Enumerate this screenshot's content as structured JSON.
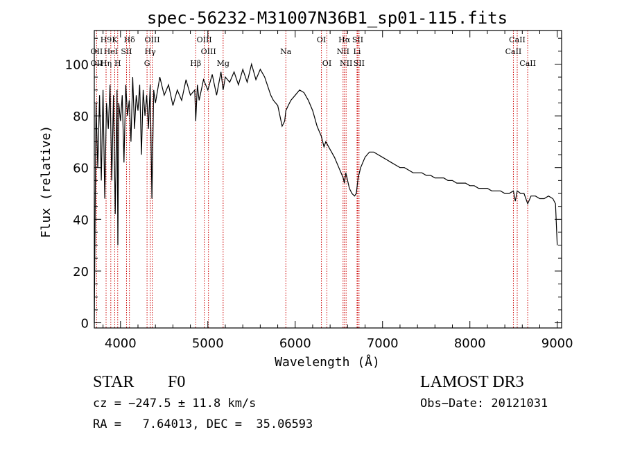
{
  "chart_data": {
    "type": "line",
    "title": "spec-56232-M31007N36B1_sp01-115.fits",
    "xlabel": "Wavelength (Å)",
    "ylabel": "Flux (relative)",
    "xlim": [
      3700,
      9050
    ],
    "ylim": [
      -2,
      113
    ],
    "xticks": [
      4000,
      5000,
      6000,
      7000,
      8000,
      9000
    ],
    "yticks": [
      0,
      20,
      40,
      60,
      80,
      100
    ],
    "grid": false,
    "line_color": "#000000",
    "marker_color": "#cc0000",
    "series": [
      {
        "name": "spectrum",
        "x": [
          3700,
          3720,
          3740,
          3760,
          3780,
          3800,
          3820,
          3840,
          3860,
          3880,
          3900,
          3920,
          3940,
          3960,
          3970,
          3980,
          4000,
          4020,
          4040,
          4060,
          4080,
          4100,
          4120,
          4140,
          4160,
          4180,
          4200,
          4220,
          4240,
          4260,
          4280,
          4300,
          4320,
          4340,
          4360,
          4380,
          4400,
          4450,
          4500,
          4550,
          4600,
          4650,
          4700,
          4750,
          4800,
          4850,
          4861,
          4880,
          4900,
          4950,
          5000,
          5050,
          5100,
          5150,
          5175,
          5200,
          5250,
          5300,
          5350,
          5400,
          5450,
          5500,
          5550,
          5600,
          5650,
          5700,
          5720,
          5750,
          5800,
          5850,
          5880,
          5893,
          5920,
          5950,
          6000,
          6050,
          6100,
          6150,
          6200,
          6250,
          6300,
          6330,
          6350,
          6400,
          6450,
          6500,
          6550,
          6563,
          6580,
          6620,
          6650,
          6680,
          6700,
          6720,
          6750,
          6800,
          6850,
          6900,
          6950,
          7000,
          7050,
          7100,
          7150,
          7200,
          7250,
          7300,
          7350,
          7400,
          7450,
          7500,
          7550,
          7600,
          7650,
          7700,
          7750,
          7800,
          7850,
          7900,
          7950,
          8000,
          8050,
          8100,
          8150,
          8200,
          8250,
          8300,
          8350,
          8400,
          8450,
          8498,
          8520,
          8542,
          8580,
          8620,
          8662,
          8700,
          8750,
          8800,
          8850,
          8900,
          8950,
          8980,
          9000
        ],
        "values": [
          0,
          85,
          60,
          88,
          55,
          90,
          48,
          85,
          75,
          92,
          55,
          88,
          42,
          90,
          30,
          85,
          78,
          88,
          62,
          92,
          80,
          86,
          70,
          95,
          75,
          88,
          82,
          92,
          65,
          90,
          80,
          88,
          75,
          92,
          48,
          90,
          85,
          95,
          88,
          92,
          84,
          90,
          86,
          94,
          88,
          90,
          78,
          92,
          86,
          94,
          90,
          96,
          88,
          97,
          90,
          95,
          93,
          97,
          92,
          98,
          93,
          100,
          94,
          98,
          95,
          90,
          88,
          86,
          84,
          76,
          78,
          82,
          84,
          86,
          88,
          90,
          89,
          86,
          82,
          76,
          72,
          68,
          70,
          67,
          64,
          60,
          56,
          54,
          58,
          52,
          50,
          49,
          50,
          56,
          60,
          64,
          66,
          66,
          65,
          64,
          63,
          62,
          61,
          60,
          60,
          59,
          58,
          58,
          58,
          57,
          57,
          56,
          56,
          56,
          55,
          55,
          54,
          54,
          54,
          53,
          53,
          52,
          52,
          52,
          51,
          51,
          51,
          50,
          50,
          51,
          47,
          51,
          50,
          50,
          46,
          49,
          49,
          48,
          48,
          49,
          48,
          46,
          30
        ]
      }
    ],
    "line_markers": [
      {
        "name": "H9",
        "x": 3835,
        "row": 1
      },
      {
        "name": "K",
        "x": 3934,
        "row": 1
      },
      {
        "name": "Hδ",
        "x": 4102,
        "row": 1
      },
      {
        "name": "OIII",
        "x": 4363,
        "row": 1
      },
      {
        "name": "OIII",
        "x": 4959,
        "row": 1
      },
      {
        "name": "OI",
        "x": 6300,
        "row": 1
      },
      {
        "name": "Hα",
        "x": 6563,
        "row": 1
      },
      {
        "name": "SII",
        "x": 6716,
        "row": 1
      },
      {
        "name": "CaII",
        "x": 8542,
        "row": 1
      },
      {
        "name": "OII",
        "x": 3727,
        "row": 2
      },
      {
        "name": "HeI",
        "x": 3889,
        "row": 2
      },
      {
        "name": "SII",
        "x": 4069,
        "row": 2
      },
      {
        "name": "Hγ",
        "x": 4340,
        "row": 2
      },
      {
        "name": "OIII",
        "x": 5007,
        "row": 2
      },
      {
        "name": "Na",
        "x": 5893,
        "row": 2
      },
      {
        "name": "NII",
        "x": 6548,
        "row": 2
      },
      {
        "name": "Li",
        "x": 6708,
        "row": 2
      },
      {
        "name": "CaII",
        "x": 8498,
        "row": 2
      },
      {
        "name": "OII",
        "x": 3727,
        "row": 3
      },
      {
        "name": "Hη",
        "x": 3835,
        "row": 3
      },
      {
        "name": "H",
        "x": 3968,
        "row": 3
      },
      {
        "name": "G",
        "x": 4304,
        "row": 3
      },
      {
        "name": "Hβ",
        "x": 4861,
        "row": 3
      },
      {
        "name": "Mg",
        "x": 5175,
        "row": 3
      },
      {
        "name": "OI",
        "x": 6363,
        "row": 3
      },
      {
        "name": "NII",
        "x": 6583,
        "row": 3
      },
      {
        "name": "SII",
        "x": 6731,
        "row": 3
      },
      {
        "name": "CaII",
        "x": 8662,
        "row": 3
      }
    ]
  },
  "info": {
    "object_type": "STAR",
    "subclass": "F0",
    "survey": "LAMOST DR3",
    "redshift": "cz = −247.5 ± 11.8 km/s",
    "obs_date": "Obs−Date: 20121031",
    "coords": "RA =   7.64013, DEC =  35.06593"
  }
}
